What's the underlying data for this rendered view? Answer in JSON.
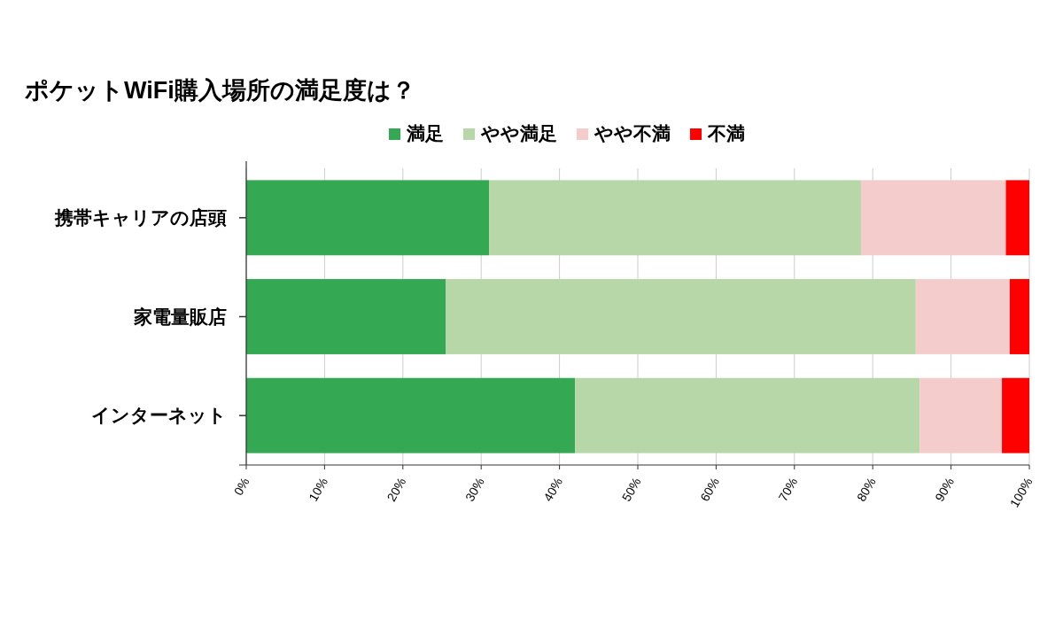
{
  "chart_data": {
    "type": "bar",
    "orientation": "horizontal",
    "stacked": true,
    "title": "ポケットWiFi購入場所の満足度は？",
    "categories": [
      "携帯キャリアの店頭",
      "家電量販店",
      "インターネット"
    ],
    "series": [
      {
        "name": "満足",
        "color": "#34a853",
        "values": [
          31,
          25.5,
          42
        ]
      },
      {
        "name": "やや満足",
        "color": "#b7d7a8",
        "values": [
          47.5,
          60,
          44
        ]
      },
      {
        "name": "やや不満",
        "color": "#f4cccc",
        "values": [
          18.5,
          12,
          10.5
        ]
      },
      {
        "name": "不満",
        "color": "#ff0000",
        "values": [
          3,
          2.5,
          3.5
        ]
      }
    ],
    "xlim": [
      0,
      100
    ],
    "xticks": [
      {
        "value": 0,
        "label": "0%"
      },
      {
        "value": 10,
        "label": "10%"
      },
      {
        "value": 20,
        "label": "20%"
      },
      {
        "value": 30,
        "label": "30%"
      },
      {
        "value": 40,
        "label": "40%"
      },
      {
        "value": 50,
        "label": "50%"
      },
      {
        "value": 60,
        "label": "60%"
      },
      {
        "value": 70,
        "label": "70%"
      },
      {
        "value": 80,
        "label": "80%"
      },
      {
        "value": 90,
        "label": "90%"
      },
      {
        "value": 100,
        "label": "100%"
      }
    ],
    "grid": "x",
    "legend": "top"
  }
}
